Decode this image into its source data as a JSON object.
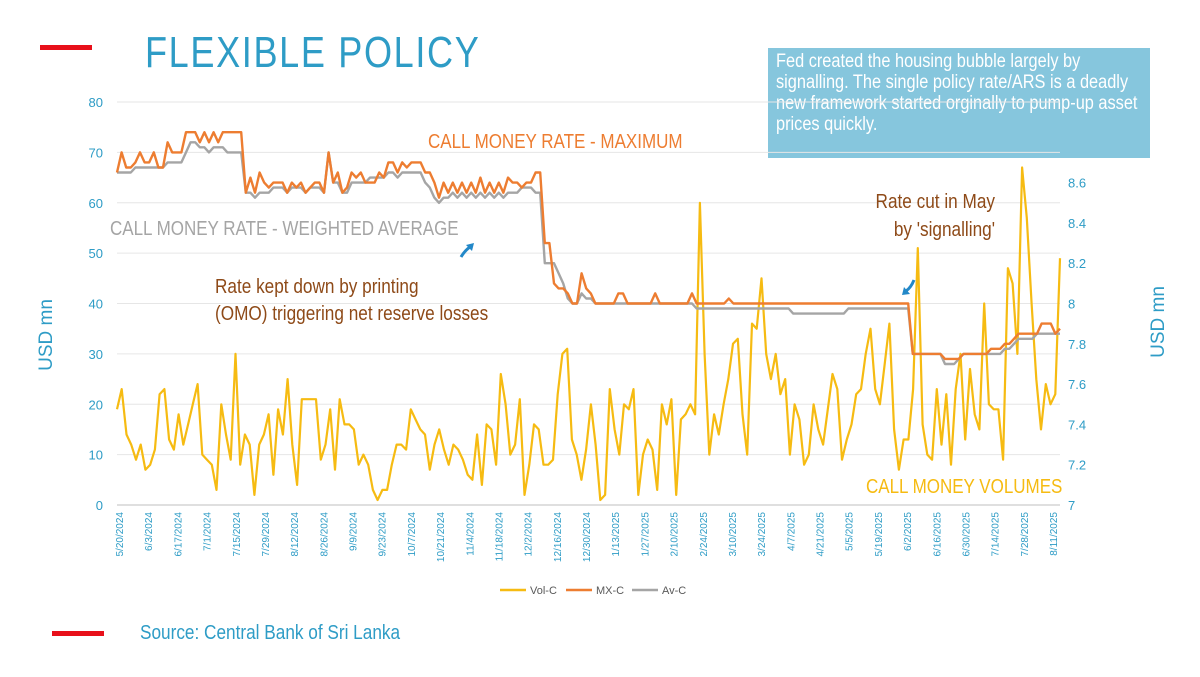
{
  "title": "FLEXIBLE POLICY",
  "callout": "Fed created the housing bubble largely by signalling. The single policy rate/ARS is a deadly new framework started orginally to pump-up asset prices quickly.",
  "source": "Source: Central Bank of Sri Lanka",
  "colors": {
    "title": "#2E9CC6",
    "callout_bg": "#86C6DD",
    "accent": "#E8101A",
    "vol": "#F6BB12",
    "max": "#ED7D31",
    "avg": "#A5A5A5",
    "axis_text": "#2E9CC6",
    "annotation": "#8E4A18",
    "arrow": "#2388C8",
    "grid": "#E6E6E6"
  },
  "icons": {
    "arrow_1": "arrow-up-right-icon",
    "arrow_2": "arrow-down-left-icon"
  },
  "chart_data": {
    "type": "line",
    "ylabel_left": "USD mn",
    "ylabel_right": "USD mn",
    "y_left": {
      "range": [
        0,
        80
      ],
      "ticks": [
        "0",
        "10",
        "20",
        "30",
        "40",
        "50",
        "60",
        "70",
        "80"
      ]
    },
    "y_right": {
      "range": [
        7,
        9
      ],
      "ticks": [
        "7",
        "7.2",
        "7.4",
        "7.6",
        "7.8",
        "8",
        "8.2",
        "8.4",
        "8.6"
      ]
    },
    "x_ticks": [
      "5/20/2024",
      "6/3/2024",
      "6/17/2024",
      "7/1/2024",
      "7/15/2024",
      "7/29/2024",
      "8/12/2024",
      "8/26/2024",
      "9/9/2024",
      "9/23/2024",
      "10/7/2024",
      "10/21/2024",
      "11/4/2024",
      "11/18/2024",
      "12/2/2024",
      "12/16/2024",
      "12/30/2024",
      "1/13/2025",
      "1/27/2025",
      "2/10/2025",
      "2/24/2025",
      "3/10/2025",
      "3/24/2025",
      "4/7/2025",
      "4/21/2025",
      "5/5/2025",
      "5/19/2025",
      "6/2/2025",
      "6/16/2025",
      "6/30/2025",
      "7/14/2025",
      "7/28/2025",
      "8/11/2025"
    ],
    "grid": true,
    "legend": {
      "position": "bottom",
      "entries": [
        "Vol-C",
        "MX-C",
        "Av-C"
      ]
    },
    "annotations": {
      "max_label": "CALL MONEY RATE - MAXIMUM",
      "avg_label": "CALL MONEY RATE - WEIGHTED AVERAGE",
      "printing_note": "Rate kept down by printing (OMO) triggering net reserve losses",
      "rate_cut_line1": "Rate cut in May",
      "rate_cut_line2": "by 'signalling'",
      "volume_label": "CALL MONEY VOLUMES"
    },
    "series": [
      {
        "name": "Vol-C",
        "axis": "left",
        "values": [
          19,
          23,
          14,
          12,
          9,
          12,
          7,
          8,
          11,
          22,
          23,
          13,
          11,
          18,
          12,
          16,
          20,
          24,
          10,
          9,
          8,
          3,
          20,
          14,
          9,
          30,
          8,
          14,
          12,
          2,
          12,
          14,
          18,
          6,
          19,
          14,
          25,
          12,
          4,
          21,
          21,
          21,
          21,
          9,
          12,
          19,
          7,
          21,
          16,
          16,
          15,
          8,
          10,
          8,
          3,
          1,
          3,
          3,
          8,
          12,
          12,
          11,
          19,
          17,
          15,
          14,
          7,
          12,
          15,
          11,
          8,
          12,
          11,
          9,
          6,
          5,
          14,
          4,
          16,
          15,
          8,
          26,
          20,
          10,
          12,
          21,
          2,
          8,
          16,
          15,
          8,
          8,
          9,
          22,
          30,
          31,
          13,
          10,
          5,
          11,
          20,
          12,
          1,
          2,
          23,
          15,
          10,
          20,
          19,
          23,
          2,
          10,
          13,
          11,
          3,
          20,
          16,
          21,
          2,
          17,
          18,
          20,
          18,
          60,
          30,
          10,
          18,
          14,
          20,
          25,
          32,
          33,
          18,
          10,
          36,
          35,
          45,
          30,
          25,
          30,
          22,
          25,
          10,
          20,
          17,
          8,
          10,
          20,
          15,
          12,
          19,
          26,
          23,
          9,
          13,
          16,
          22,
          23,
          30,
          35,
          23,
          20,
          28,
          36,
          15,
          7,
          13,
          13,
          23,
          51,
          16,
          10,
          9,
          23,
          12,
          22,
          8,
          23,
          30,
          13,
          27,
          18,
          15,
          40,
          20,
          19,
          19,
          9,
          47,
          44,
          30,
          67,
          57,
          40,
          25,
          15,
          24,
          20,
          22,
          49
        ]
      },
      {
        "name": "MX-C",
        "axis": "left",
        "values": [
          66,
          70,
          67,
          67,
          68,
          70,
          68,
          68,
          70,
          67,
          67,
          72,
          70,
          70,
          70,
          74,
          74,
          74,
          72,
          74,
          72,
          74,
          72,
          74,
          74,
          74,
          74,
          74,
          62,
          65,
          62,
          66,
          64,
          63,
          64,
          64,
          64,
          62,
          64,
          63,
          64,
          62,
          63,
          64,
          64,
          62,
          70,
          64,
          66,
          62,
          63,
          66,
          65,
          66,
          64,
          64,
          64,
          66,
          65,
          68,
          68,
          66,
          68,
          67,
          68,
          68,
          68,
          66,
          66,
          64,
          61,
          64,
          62,
          64,
          62,
          64,
          62,
          64,
          62,
          65,
          62,
          64,
          62,
          64,
          62,
          65,
          64,
          64,
          63,
          64,
          64,
          66,
          66,
          52,
          52,
          44,
          43,
          43,
          42,
          40,
          40,
          46,
          43,
          42,
          40,
          40,
          40,
          40,
          40,
          42,
          42,
          40,
          40,
          40,
          40,
          40,
          40,
          42,
          40,
          40,
          40,
          40,
          40,
          40,
          40,
          42,
          40,
          40,
          40,
          40,
          40,
          40,
          40,
          41,
          40,
          40,
          40,
          40,
          40,
          40,
          40,
          40,
          40,
          40,
          40,
          40,
          40,
          40,
          40,
          40,
          40,
          40,
          40,
          40,
          40,
          40,
          40,
          40,
          40,
          40,
          40,
          40,
          40,
          40,
          40,
          40,
          40,
          40,
          40,
          40,
          40,
          40,
          40,
          30,
          30,
          30,
          30,
          30,
          30,
          30,
          29,
          29,
          29,
          29,
          30,
          30,
          30,
          30,
          30,
          30,
          31,
          31,
          31,
          32,
          32,
          33,
          34,
          34,
          34,
          34,
          34,
          36,
          36,
          36,
          34,
          35
        ]
      },
      {
        "name": "Av-C",
        "axis": "left",
        "values": [
          66,
          66,
          66,
          66,
          67,
          67,
          67,
          67,
          67,
          67,
          67,
          68,
          68,
          68,
          68,
          70,
          72,
          72,
          71,
          71,
          70,
          71,
          71,
          71,
          70,
          70,
          70,
          70,
          62,
          62,
          61,
          62,
          62,
          62,
          63,
          63,
          63,
          62,
          63,
          63,
          63,
          62,
          63,
          63,
          63,
          62,
          70,
          64,
          64,
          62,
          62,
          64,
          64,
          64,
          64,
          65,
          65,
          65,
          65,
          66,
          66,
          65,
          66,
          66,
          66,
          66,
          66,
          64,
          63,
          61,
          60,
          61,
          61,
          62,
          61,
          62,
          61,
          62,
          61,
          62,
          61,
          62,
          61,
          62,
          61,
          62,
          62,
          62,
          63,
          63,
          63,
          62,
          62,
          48,
          48,
          48,
          46,
          44,
          41,
          40,
          40,
          42,
          41,
          41,
          40,
          40,
          40,
          40,
          40,
          40,
          40,
          40,
          40,
          40,
          40,
          40,
          40,
          40,
          40,
          40,
          40,
          40,
          40,
          40,
          40,
          40,
          39,
          39,
          39,
          39,
          39,
          39,
          39,
          39,
          39,
          39,
          39,
          39,
          39,
          39,
          39,
          39,
          39,
          39,
          39,
          39,
          39,
          38,
          38,
          38,
          38,
          38,
          38,
          38,
          38,
          38,
          38,
          38,
          38,
          39,
          39,
          39,
          39,
          39,
          39,
          39,
          39,
          39,
          39,
          39,
          39,
          39,
          39,
          30,
          30,
          30,
          30,
          30,
          30,
          30,
          28,
          28,
          28,
          29,
          30,
          30,
          30,
          30,
          30,
          30,
          30,
          30,
          30,
          31,
          31,
          32,
          33,
          33,
          33,
          33,
          34,
          34,
          34,
          34,
          34,
          34
        ]
      }
    ]
  }
}
